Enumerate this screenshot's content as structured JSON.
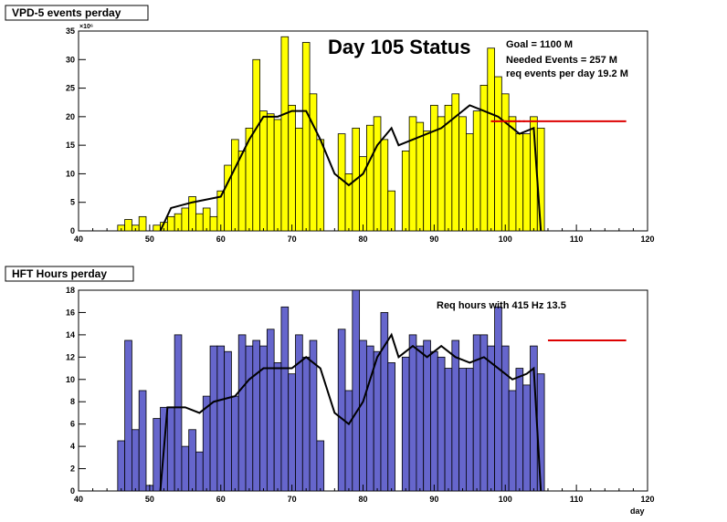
{
  "colors": {
    "top_fill": "#ffff00",
    "bottom_fill": "#6666cc",
    "target_line": "#dd0000",
    "avg_line": "#000000"
  },
  "chart_data": [
    {
      "type": "bar",
      "title": "VPD-5 events perday",
      "heading": "Day 105 Status",
      "annotations": [
        "Goal =  1100 M",
        "Needed Events =   257 M",
        "req events per day 19.2 M"
      ],
      "exponent_label": "×10⁶",
      "xlabel": "",
      "xlim": [
        40,
        120
      ],
      "ylim": [
        0,
        35
      ],
      "xticks": [
        40,
        50,
        60,
        70,
        80,
        90,
        100,
        110,
        120
      ],
      "yticks": [
        0,
        5,
        10,
        15,
        20,
        25,
        30,
        35
      ],
      "x": [
        46,
        47,
        48,
        49,
        50,
        51,
        52,
        53,
        54,
        55,
        56,
        57,
        58,
        59,
        60,
        61,
        62,
        63,
        64,
        65,
        66,
        67,
        68,
        69,
        70,
        71,
        72,
        73,
        74,
        75,
        76,
        77,
        78,
        79,
        80,
        81,
        82,
        83,
        84,
        85,
        86,
        87,
        88,
        89,
        90,
        91,
        92,
        93,
        94,
        95,
        96,
        97,
        98,
        99,
        100,
        101,
        102,
        103,
        104,
        105
      ],
      "values": [
        1,
        2,
        1,
        2.5,
        0,
        1,
        1.5,
        2.5,
        3,
        4,
        6,
        3,
        4,
        2.5,
        7,
        11.5,
        16,
        14,
        18,
        30,
        21,
        20.5,
        19.5,
        34,
        22,
        18,
        33,
        24,
        16,
        0,
        0,
        17,
        10,
        18,
        13,
        18.5,
        20,
        16,
        7,
        0,
        14,
        20,
        19,
        17.5,
        22,
        20,
        22,
        24,
        20,
        17,
        21,
        25.5,
        32,
        27,
        24,
        20,
        17,
        17,
        20,
        18
      ],
      "avg_line": [
        [
          51.5,
          0
        ],
        [
          53,
          4
        ],
        [
          56,
          5
        ],
        [
          60,
          6
        ],
        [
          62,
          11
        ],
        [
          64,
          16
        ],
        [
          66,
          20
        ],
        [
          68,
          20
        ],
        [
          70,
          21
        ],
        [
          72,
          21
        ],
        [
          74,
          16
        ],
        [
          76,
          10
        ],
        [
          78,
          8
        ],
        [
          80,
          10
        ],
        [
          82,
          15
        ],
        [
          84,
          18
        ],
        [
          85,
          15
        ],
        [
          87,
          16
        ],
        [
          89,
          17
        ],
        [
          91,
          18
        ],
        [
          93,
          20
        ],
        [
          95,
          22
        ],
        [
          97,
          21
        ],
        [
          99,
          20
        ],
        [
          101,
          18
        ],
        [
          102,
          17
        ],
        [
          104,
          18
        ],
        [
          105,
          0
        ]
      ],
      "target": {
        "x": [
          98,
          117
        ],
        "y": 19.2
      },
      "grid": false
    },
    {
      "type": "bar",
      "title": "HFT Hours perday",
      "annotations": [
        "Req hours with  415 Hz 13.5"
      ],
      "xlabel": "day",
      "xlim": [
        40,
        120
      ],
      "ylim": [
        0,
        18
      ],
      "xticks": [
        40,
        50,
        60,
        70,
        80,
        90,
        100,
        110,
        120
      ],
      "yticks": [
        0,
        2,
        4,
        6,
        8,
        10,
        12,
        14,
        16,
        18
      ],
      "x": [
        46,
        47,
        48,
        49,
        50,
        51,
        52,
        53,
        54,
        55,
        56,
        57,
        58,
        59,
        60,
        61,
        62,
        63,
        64,
        65,
        66,
        67,
        68,
        69,
        70,
        71,
        72,
        73,
        74,
        75,
        76,
        77,
        78,
        79,
        80,
        81,
        82,
        83,
        84,
        85,
        86,
        87,
        88,
        89,
        90,
        91,
        92,
        93,
        94,
        95,
        96,
        97,
        98,
        99,
        100,
        101,
        102,
        103,
        104,
        105
      ],
      "values": [
        4.5,
        13.5,
        5.5,
        9,
        0.5,
        6.5,
        7.5,
        7.5,
        14,
        4,
        5.5,
        3.5,
        8.5,
        13,
        13,
        12.5,
        8.5,
        14,
        13,
        13.5,
        13,
        14.5,
        11.5,
        16.5,
        10.5,
        14,
        12,
        13.5,
        4.5,
        0,
        0,
        14.5,
        9,
        18,
        13.5,
        13,
        12.5,
        16,
        11.5,
        0,
        12,
        14,
        13,
        13.5,
        12.5,
        12,
        11,
        13.5,
        11,
        11,
        14,
        14,
        13,
        16.5,
        13,
        9,
        11,
        9.5,
        13,
        10.5
      ],
      "avg_line": [
        [
          51.5,
          0
        ],
        [
          52.5,
          7.5
        ],
        [
          55,
          7.5
        ],
        [
          57,
          7
        ],
        [
          59,
          8
        ],
        [
          62,
          8.5
        ],
        [
          64,
          10
        ],
        [
          66,
          11
        ],
        [
          68,
          11
        ],
        [
          70,
          11
        ],
        [
          72,
          12
        ],
        [
          74,
          11
        ],
        [
          76,
          7
        ],
        [
          78,
          6
        ],
        [
          80,
          8
        ],
        [
          82,
          12
        ],
        [
          84,
          14
        ],
        [
          85,
          12
        ],
        [
          87,
          13
        ],
        [
          89,
          12
        ],
        [
          91,
          13
        ],
        [
          93,
          12
        ],
        [
          95,
          11.5
        ],
        [
          97,
          12
        ],
        [
          99,
          11
        ],
        [
          101,
          10
        ],
        [
          103,
          10.5
        ],
        [
          104,
          11
        ],
        [
          105,
          0
        ]
      ],
      "target": {
        "x": [
          106,
          117
        ],
        "y": 13.5
      },
      "grid": false
    }
  ]
}
